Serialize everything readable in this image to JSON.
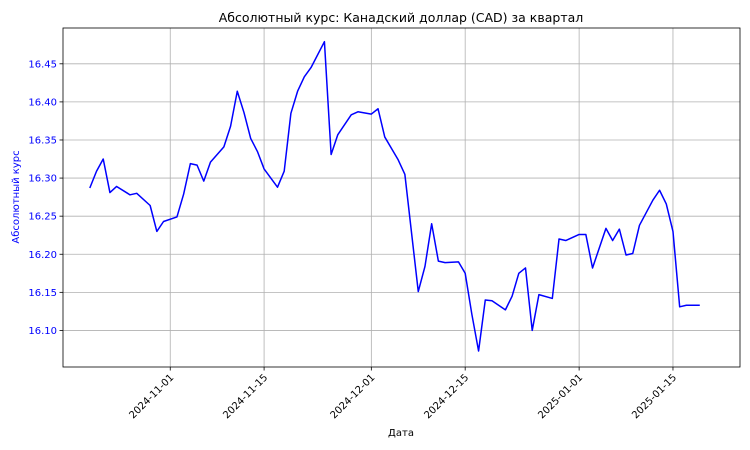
{
  "chart_data": {
    "type": "line",
    "title": "Абсолютный курс: Канадский доллар (CAD) за квартал",
    "xlabel": "Дата",
    "ylabel": "Абсолютный курс",
    "ylim": [
      16.052,
      16.497
    ],
    "xlim": [
      "2024-10-16",
      "2025-01-25"
    ],
    "grid": true,
    "colors": {
      "line": "#0000ff",
      "ylabel": "#0000ff",
      "ytick_labels": "#0000ff",
      "grid": "#b0b0b0"
    },
    "yticks": [
      16.1,
      16.15,
      16.2,
      16.25,
      16.3,
      16.35,
      16.4,
      16.45
    ],
    "ytick_labels": [
      "16.10",
      "16.15",
      "16.20",
      "16.25",
      "16.30",
      "16.35",
      "16.40",
      "16.45"
    ],
    "xticks": [
      "2024-11-01",
      "2024-11-15",
      "2024-12-01",
      "2024-12-15",
      "2025-01-01",
      "2025-01-15"
    ],
    "xtick_labels": [
      "2024-11-01",
      "2024-11-15",
      "2024-12-01",
      "2024-12-15",
      "2025-01-01",
      "2025-01-15"
    ],
    "series": [
      {
        "x": [
          "2024-10-20",
          "2024-10-21",
          "2024-10-22",
          "2024-10-23",
          "2024-10-24",
          "2024-10-26",
          "2024-10-27",
          "2024-10-29",
          "2024-10-30",
          "2024-10-31",
          "2024-11-02",
          "2024-11-03",
          "2024-11-04",
          "2024-11-05",
          "2024-11-06",
          "2024-11-07",
          "2024-11-09",
          "2024-11-10",
          "2024-11-11",
          "2024-11-12",
          "2024-11-13",
          "2024-11-14",
          "2024-11-15",
          "2024-11-17",
          "2024-11-18",
          "2024-11-19",
          "2024-11-20",
          "2024-11-21",
          "2024-11-22",
          "2024-11-24",
          "2024-11-25",
          "2024-11-26",
          "2024-11-28",
          "2024-11-29",
          "2024-12-01",
          "2024-12-02",
          "2024-12-03",
          "2024-12-04",
          "2024-12-05",
          "2024-12-06",
          "2024-12-08",
          "2024-12-09",
          "2024-12-10",
          "2024-12-11",
          "2024-12-12",
          "2024-12-14",
          "2024-12-15",
          "2024-12-16",
          "2024-12-17",
          "2024-12-18",
          "2024-12-19",
          "2024-12-21",
          "2024-12-22",
          "2024-12-23",
          "2024-12-24",
          "2024-12-25",
          "2024-12-26",
          "2024-12-28",
          "2024-12-29",
          "2024-12-30",
          "2025-01-01",
          "2025-01-02",
          "2025-01-03",
          "2025-01-05",
          "2025-01-06",
          "2025-01-07",
          "2025-01-08",
          "2025-01-09",
          "2025-01-10",
          "2025-01-12",
          "2025-01-13",
          "2025-01-14",
          "2025-01-15",
          "2025-01-16",
          "2025-01-17",
          "2025-01-19"
        ],
        "values": [
          16.287,
          16.309,
          16.325,
          16.281,
          16.289,
          16.278,
          16.28,
          16.264,
          16.23,
          16.243,
          16.249,
          16.279,
          16.319,
          16.317,
          16.296,
          16.321,
          16.341,
          16.368,
          16.414,
          16.386,
          16.352,
          16.335,
          16.312,
          16.288,
          16.309,
          16.385,
          16.414,
          16.433,
          16.445,
          16.479,
          16.331,
          16.357,
          16.383,
          16.387,
          16.384,
          16.391,
          16.354,
          16.339,
          16.324,
          16.305,
          16.151,
          16.184,
          16.24,
          16.191,
          16.189,
          16.19,
          16.175,
          16.121,
          16.073,
          16.14,
          16.139,
          16.127,
          16.145,
          16.175,
          16.182,
          16.1,
          16.147,
          16.142,
          16.22,
          16.218,
          16.226,
          16.226,
          16.182,
          16.234,
          16.218,
          16.233,
          16.199,
          16.201,
          16.238,
          16.271,
          16.284,
          16.266,
          16.23,
          16.131,
          16.133,
          16.133
        ]
      }
    ]
  }
}
